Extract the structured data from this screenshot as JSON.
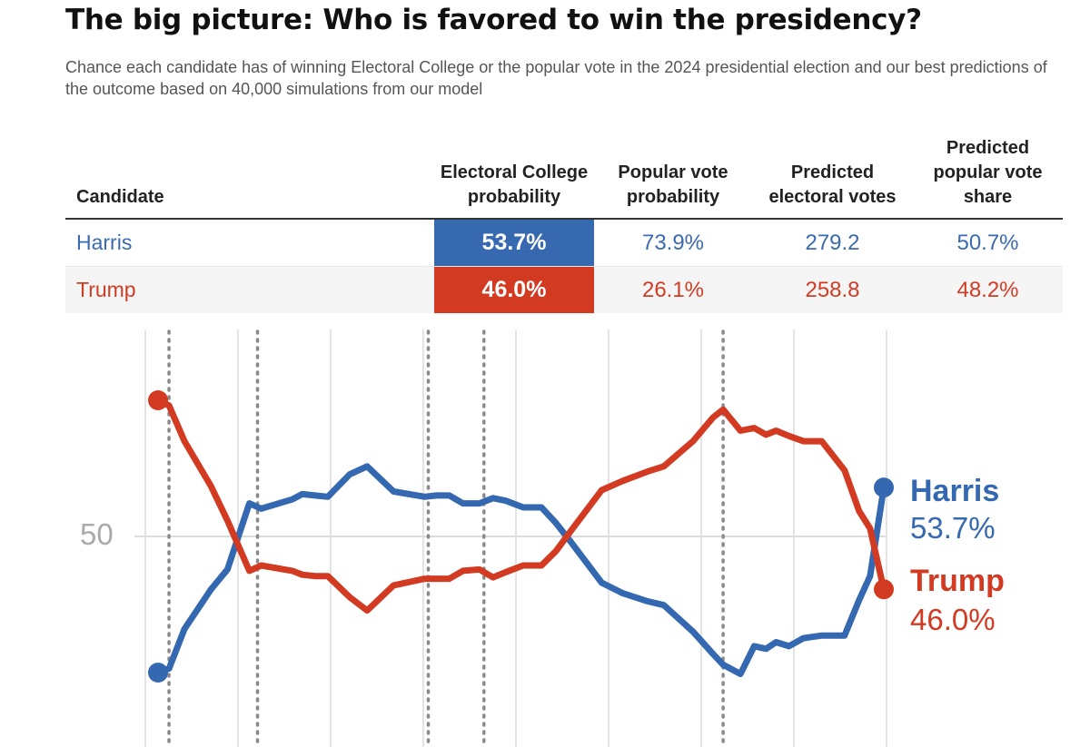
{
  "header": {
    "title": "The big picture: Who is favored to win the presidency?",
    "subtitle": "Chance each candidate has of winning Electoral College or the popular vote in the 2024 presidential election and our best predictions of the outcome based on 40,000 simulations from our model"
  },
  "table": {
    "columns": [
      "Candidate",
      "Electoral College probability",
      "Popular vote probability",
      "Predicted electoral votes",
      "Predicted popular vote share"
    ],
    "rows": [
      {
        "candidate": "Harris",
        "ec_prob": "53.7%",
        "pv_prob": "73.9%",
        "ev": "279.2",
        "pv_share": "50.7%"
      },
      {
        "candidate": "Trump",
        "ec_prob": "46.0%",
        "pv_prob": "26.1%",
        "ev": "258.8",
        "pv_share": "48.2%"
      }
    ]
  },
  "colors": {
    "harris": "#3468b0",
    "trump": "#d23a22"
  },
  "chart_data": {
    "type": "line",
    "title": "",
    "xlabel": "",
    "ylabel": "",
    "y_tick_labels": [
      "50"
    ],
    "ylim": [
      39.7,
      60.3
    ],
    "grid": "vertical",
    "event_markers_x": [
      1.2,
      10.9,
      29.6,
      35.7,
      61.9
    ],
    "series": [
      {
        "name": "Harris",
        "end_label": "53.7%",
        "x": [
          0,
          1.2,
          2.9,
          5.8,
          7.6,
          10.0,
          11.3,
          14.7,
          15.8,
          17.2,
          18.6,
          21.0,
          22.9,
          25.8,
          29.2,
          30.5,
          31.9,
          33.4,
          35.2,
          36.7,
          38.1,
          40.0,
          42.0,
          43.6,
          45.2,
          48.6,
          50.9,
          53.6,
          55.4,
          58.6,
          60.8,
          61.9,
          63.8,
          65.3,
          66.6,
          67.7,
          69.1,
          70.7,
          72.7,
          75.2,
          76.8,
          78.0,
          79.5
        ],
        "values": [
          39.7,
          40.0,
          43.0,
          46.0,
          47.5,
          52.5,
          52.1,
          52.8,
          53.2,
          53.1,
          53.0,
          54.7,
          55.3,
          53.4,
          53.0,
          53.1,
          53.1,
          52.5,
          52.5,
          52.9,
          52.7,
          52.2,
          52.2,
          51.0,
          49.6,
          46.5,
          45.7,
          45.1,
          44.8,
          42.8,
          41.1,
          40.3,
          39.6,
          41.7,
          41.5,
          42.0,
          41.7,
          42.3,
          42.5,
          42.5,
          45.2,
          47.0,
          53.7
        ]
      },
      {
        "name": "Trump",
        "end_label": "46.0%",
        "x": [
          0,
          1.2,
          2.9,
          5.8,
          7.6,
          10.0,
          11.3,
          14.7,
          15.8,
          17.2,
          18.6,
          21.0,
          22.9,
          25.8,
          29.2,
          30.5,
          31.9,
          33.4,
          35.2,
          36.7,
          38.1,
          40.0,
          42.0,
          43.6,
          45.2,
          48.6,
          50.9,
          53.6,
          55.4,
          58.6,
          60.8,
          61.9,
          63.8,
          65.3,
          66.6,
          67.7,
          69.1,
          70.7,
          72.7,
          75.2,
          76.8,
          78.0,
          79.5
        ],
        "values": [
          60.3,
          59.9,
          57.2,
          53.8,
          51.2,
          47.4,
          47.8,
          47.4,
          47.1,
          47.0,
          47.0,
          45.4,
          44.4,
          46.3,
          46.8,
          46.8,
          46.8,
          47.4,
          47.5,
          46.9,
          47.3,
          47.8,
          47.8,
          48.9,
          50.4,
          53.5,
          54.2,
          54.9,
          55.3,
          57.2,
          59.0,
          59.6,
          58.0,
          58.2,
          57.7,
          58.0,
          57.6,
          57.2,
          57.2,
          55.0,
          51.9,
          50.6,
          46.0
        ]
      }
    ]
  }
}
